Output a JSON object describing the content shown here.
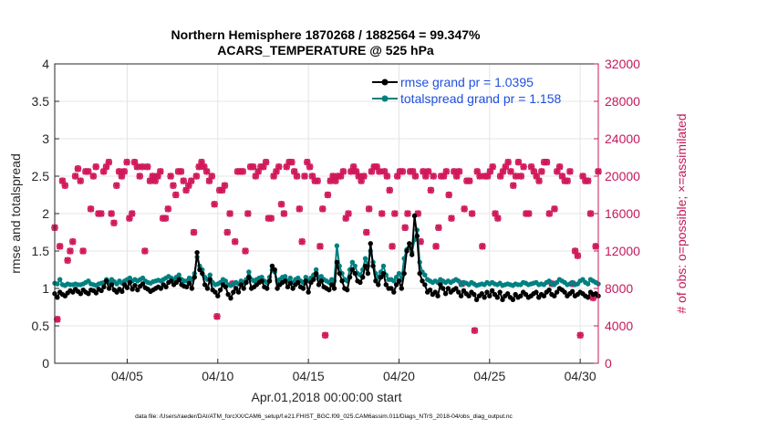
{
  "chart_data": {
    "type": "line",
    "title_line1": "Northern Hemisphere 1870268 / 1882564 = 99.347%",
    "title_line2": "ACARS_TEMPERATURE @ 525 hPa",
    "xlabel": "Apr.01,2018 00:00:00 start",
    "ylabel_left": "rmse and totalspread",
    "ylabel_right": "# of obs: o=possible; ×=assimilated",
    "x_range_days": [
      0.5,
      30.5
    ],
    "y_left_range": [
      0,
      4
    ],
    "y_right_range": [
      0,
      32000
    ],
    "x_ticks": [
      {
        "label": "04/05",
        "day": 4.5
      },
      {
        "label": "04/10",
        "day": 9.5
      },
      {
        "label": "04/15",
        "day": 14.5
      },
      {
        "label": "04/20",
        "day": 19.5
      },
      {
        "label": "04/25",
        "day": 24.5
      },
      {
        "label": "04/30",
        "day": 29.5
      }
    ],
    "y_left_ticks": [
      "0",
      "0.5",
      "1",
      "1.5",
      "2",
      "2.5",
      "3",
      "3.5",
      "4"
    ],
    "y_right_ticks": [
      "0",
      "4000",
      "8000",
      "12000",
      "16000",
      "20000",
      "24000",
      "28000",
      "32000"
    ],
    "grid": true,
    "legend_position": "top-right",
    "colors": {
      "rmse": "#000000",
      "spread": "#008080",
      "obs": "#d0185a",
      "axis_right": "#c4185a",
      "legend_text": "#1f4fe0"
    },
    "series": [
      {
        "name": "rmse grand pr = 1.0395",
        "key": "rmse",
        "values": [
          0.93,
          0.88,
          0.95,
          0.92,
          0.9,
          0.94,
          0.97,
          0.95,
          0.99,
          0.96,
          0.93,
          0.98,
          0.95,
          0.93,
          0.98,
          0.97,
          0.94,
          0.99,
          0.97,
          1.02,
          1.1,
          1.0,
          1.05,
          0.98,
          0.95,
          0.99,
          0.96,
          1.05,
          1.01,
          1.08,
          0.99,
          1.04,
          0.98,
          1.03,
          1.06,
          1.01,
          0.99,
          0.96,
          0.98,
          1.0,
          1.02,
          1.0,
          1.05,
          1.02,
          1.08,
          1.1,
          1.05,
          1.08,
          1.12,
          1.05,
          1.03,
          1.02,
          1.07,
          1.0,
          1.15,
          1.48,
          1.25,
          1.2,
          1.05,
          1.0,
          1.12,
          0.98,
          0.95,
          0.9,
          0.98,
          1.05,
          1.02,
          0.92,
          0.87,
          0.95,
          1.0,
          0.95,
          1.05,
          1.0,
          1.08,
          1.15,
          1.0,
          1.02,
          1.05,
          1.08,
          1.1,
          1.02,
          1.0,
          1.1,
          1.3,
          1.25,
          1.0,
          1.05,
          1.08,
          1.1,
          1.02,
          1.07,
          1.0,
          1.05,
          1.08,
          1.02,
          1.0,
          1.1,
          0.95,
          1.08,
          1.12,
          1.2,
          1.05,
          1.1,
          1.02,
          1.0,
          0.98,
          1.05,
          1.0,
          1.35,
          1.2,
          1.1,
          1.0,
          0.98,
          1.15,
          1.25,
          1.2,
          1.1,
          1.08,
          1.15,
          1.3,
          1.2,
          1.6,
          1.3,
          1.1,
          1.05,
          1.15,
          1.2,
          1.05,
          1.0,
          1.0,
          0.95,
          1.05,
          1.1,
          1.0,
          1.2,
          1.5,
          1.6,
          1.45,
          1.97,
          1.7,
          1.2,
          1.1,
          1.05,
          0.95,
          0.98,
          0.92,
          0.95,
          0.9,
          1.05,
          1.0,
          0.93,
          1.0,
          0.95,
          0.98,
          1.0,
          0.95,
          0.9,
          0.97,
          0.93,
          0.9,
          0.95,
          0.92,
          0.85,
          0.9,
          0.93,
          0.88,
          0.95,
          0.9,
          0.97,
          0.92,
          0.88,
          0.95,
          0.85,
          0.9,
          0.93,
          0.88,
          0.85,
          0.92,
          0.88,
          0.9,
          0.95,
          0.92,
          0.88,
          0.9,
          0.93,
          0.95,
          0.88,
          0.92,
          0.9,
          0.95,
          0.98,
          0.92,
          0.9,
          0.95,
          1.0,
          0.98,
          0.95,
          0.9,
          0.93,
          0.96,
          0.9,
          0.92,
          0.95,
          0.93,
          0.9,
          0.88,
          0.95,
          0.92,
          0.93,
          0.9
        ]
      },
      {
        "name": "totalspread grand pr = 1.158",
        "key": "spread",
        "values": [
          1.07,
          1.06,
          1.12,
          1.05,
          1.04,
          1.06,
          1.05,
          1.05,
          1.06,
          1.05,
          1.05,
          1.06,
          1.08,
          1.1,
          1.06,
          1.05,
          1.04,
          1.06,
          1.07,
          1.08,
          1.12,
          1.08,
          1.12,
          1.09,
          1.06,
          1.1,
          1.07,
          1.1,
          1.12,
          1.14,
          1.1,
          1.12,
          1.1,
          1.12,
          1.14,
          1.1,
          1.08,
          1.07,
          1.09,
          1.1,
          1.11,
          1.1,
          1.12,
          1.14,
          1.16,
          1.14,
          1.12,
          1.15,
          1.18,
          1.12,
          1.1,
          1.1,
          1.14,
          1.12,
          1.2,
          1.42,
          1.3,
          1.25,
          1.15,
          1.12,
          1.18,
          1.08,
          1.05,
          1.06,
          1.08,
          1.12,
          1.1,
          1.05,
          1.04,
          1.06,
          1.08,
          1.06,
          1.1,
          1.08,
          1.12,
          1.22,
          1.12,
          1.1,
          1.12,
          1.14,
          1.15,
          1.1,
          1.08,
          1.15,
          1.25,
          1.22,
          1.1,
          1.12,
          1.15,
          1.16,
          1.1,
          1.14,
          1.08,
          1.12,
          1.14,
          1.1,
          1.08,
          1.15,
          1.1,
          1.14,
          1.18,
          1.25,
          1.15,
          1.16,
          1.12,
          1.1,
          1.08,
          1.12,
          1.1,
          1.57,
          1.3,
          1.2,
          1.12,
          1.1,
          1.25,
          1.35,
          1.3,
          1.2,
          1.18,
          1.25,
          1.4,
          1.3,
          1.5,
          1.35,
          1.2,
          1.15,
          1.22,
          1.3,
          1.18,
          1.12,
          1.12,
          1.1,
          1.15,
          1.2,
          1.12,
          1.4,
          1.52,
          1.55,
          1.48,
          1.65,
          1.78,
          1.35,
          1.22,
          1.18,
          1.12,
          1.1,
          1.08,
          1.1,
          1.08,
          1.12,
          1.1,
          1.08,
          1.1,
          1.08,
          1.1,
          1.12,
          1.1,
          1.05,
          1.08,
          1.07,
          1.05,
          1.08,
          1.06,
          1.04,
          1.05,
          1.06,
          1.05,
          1.08,
          1.06,
          1.08,
          1.06,
          1.05,
          1.07,
          1.04,
          1.05,
          1.06,
          1.05,
          1.04,
          1.06,
          1.05,
          1.05,
          1.08,
          1.07,
          1.05,
          1.06,
          1.07,
          1.08,
          1.05,
          1.06,
          1.05,
          1.08,
          1.1,
          1.06,
          1.05,
          1.08,
          1.12,
          1.1,
          1.08,
          1.05,
          1.06,
          1.08,
          1.05,
          1.06,
          1.1,
          1.12,
          1.08,
          1.06,
          1.12,
          1.1,
          1.08,
          1.06
        ]
      },
      {
        "name": "observations",
        "key": "obs",
        "values": [
          14500,
          4700,
          12500,
          19500,
          19000,
          11000,
          12000,
          13000,
          20000,
          20800,
          19500,
          12000,
          20500,
          20500,
          16500,
          20000,
          21000,
          16000,
          16000,
          20500,
          21000,
          21500,
          16000,
          15000,
          19000,
          20500,
          20000,
          20500,
          21500,
          15500,
          16000,
          21500,
          21000,
          20000,
          21000,
          12000,
          21000,
          19500,
          20000,
          19500,
          20000,
          20500,
          15500,
          15500,
          16500,
          20000,
          19000,
          18000,
          20500,
          20500,
          19500,
          18500,
          19000,
          19500,
          14000,
          20000,
          21000,
          21500,
          21000,
          20500,
          19500,
          20000,
          17000,
          5000,
          18500,
          18500,
          19000,
          14000,
          16000,
          8500,
          13000,
          20500,
          20500,
          20500,
          12000,
          16000,
          21000,
          21000,
          20000,
          20500,
          21000,
          21000,
          21500,
          15500,
          15500,
          20000,
          20500,
          21000,
          17000,
          16000,
          21000,
          21500,
          21500,
          20500,
          20000,
          16500,
          13000,
          20000,
          21500,
          21000,
          20000,
          19500,
          19500,
          12500,
          16500,
          3000,
          18000,
          19500,
          20000,
          19500,
          20000,
          20000,
          20500,
          15500,
          16000,
          20500,
          21000,
          20500,
          20000,
          19500,
          20000,
          14000,
          16500,
          20500,
          21000,
          21000,
          20500,
          16000,
          20500,
          20000,
          18500,
          12500,
          16000,
          20000,
          20500,
          20500,
          14500,
          16000,
          20500,
          20500,
          20000,
          16000,
          13000,
          20500,
          20000,
          20500,
          18500,
          20000,
          12500,
          14500,
          20000,
          20000,
          20500,
          18000,
          15500,
          20500,
          20000,
          20500,
          8500,
          16500,
          19500,
          19500,
          16000,
          3500,
          20500,
          20000,
          12500,
          20000,
          20000,
          20500,
          21000,
          16000,
          15500,
          20000,
          20500,
          21000,
          21500,
          20500,
          19000,
          20000,
          21500,
          20000,
          21000,
          16000,
          16000,
          21000,
          20500,
          20000,
          19500,
          20500,
          21500,
          21500,
          16000,
          8500,
          16500,
          20500,
          21000,
          20000,
          19500,
          19500,
          20500,
          8500,
          12000,
          11500,
          3000,
          20000,
          19500,
          19500,
          16000,
          7000,
          12500,
          20500
        ]
      }
    ]
  },
  "footer": "data file: /Users/raeder/DAI/ATM_forcXX/CAM6_setup/f.e21.FHIST_BGC.f09_025.CAM6assim.011/Diags_NTrS_2018-04/obs_diag_output.nc"
}
